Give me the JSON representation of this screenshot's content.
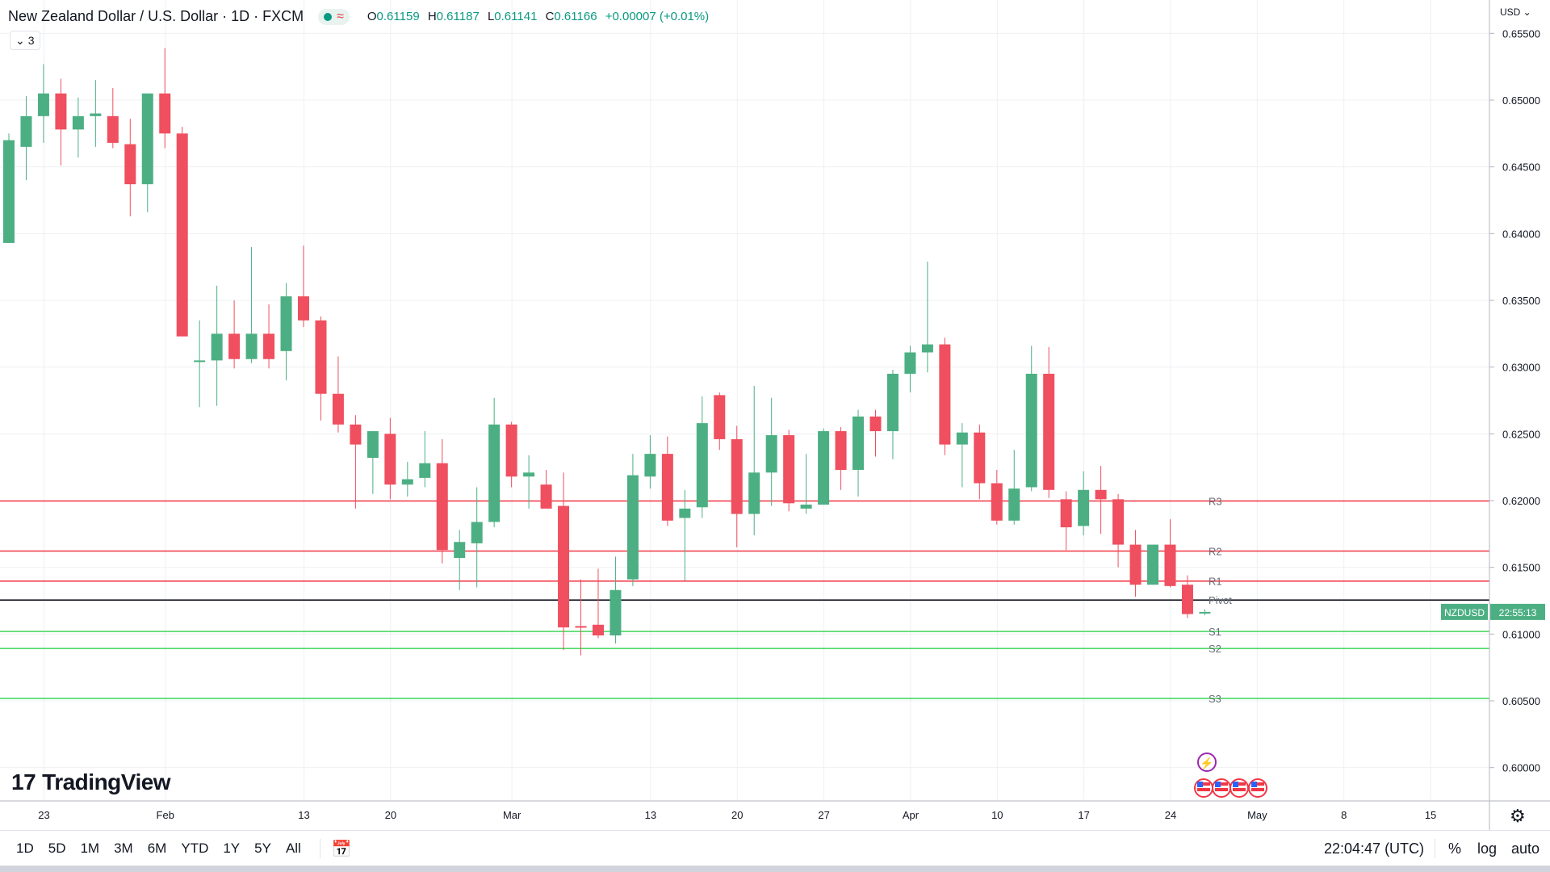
{
  "legend": {
    "symbol": "New Zealand Dollar / U.S. Dollar · 1D · FXCM",
    "ohlc": [
      {
        "key": "O",
        "value": "0.61159"
      },
      {
        "key": "H",
        "value": "0.61187"
      },
      {
        "key": "L",
        "value": "0.61141"
      },
      {
        "key": "C",
        "value": "0.61166"
      }
    ],
    "change": "+0.00007 (+0.01%)",
    "indicator_count": "3"
  },
  "price_axis": {
    "currency": "USD"
  },
  "last_price": {
    "ticker": "NZDUSD",
    "countdown": "22:55:13",
    "value": 0.61166
  },
  "branding": {
    "logo_text": "TradingView"
  },
  "toolbar": {
    "ranges": [
      "1D",
      "5D",
      "1M",
      "3M",
      "6M",
      "YTD",
      "1Y",
      "5Y",
      "All"
    ],
    "clock": "22:04:47 (UTC)",
    "percent_label": "%",
    "log_label": "log",
    "auto_label": "auto"
  },
  "colors": {
    "up": "#4caf83",
    "down": "#ef4f5f",
    "resistance": "#f23645",
    "support": "#4cd964",
    "pivot": "#131722",
    "grid": "#eef0f3"
  },
  "chart_data": {
    "type": "candlestick",
    "title": "New Zealand Dollar / U.S. Dollar · 1D · FXCM",
    "ylim": [
      0.5975,
      0.6575
    ],
    "y_ticks": [
      "0.60000",
      "0.60500",
      "0.61000",
      "0.61500",
      "0.62000",
      "0.62500",
      "0.63000",
      "0.63500",
      "0.64000",
      "0.64500",
      "0.65000",
      "0.65500"
    ],
    "x_ticks": [
      {
        "label": "23",
        "index": 1
      },
      {
        "label": "Feb",
        "index": 8
      },
      {
        "label": "13",
        "index": 16
      },
      {
        "label": "20",
        "index": 21
      },
      {
        "label": "Mar",
        "index": 28
      },
      {
        "label": "13",
        "index": 36
      },
      {
        "label": "20",
        "index": 41
      },
      {
        "label": "27",
        "index": 46
      },
      {
        "label": "Apr",
        "index": 51
      },
      {
        "label": "10",
        "index": 56
      },
      {
        "label": "17",
        "index": 61
      },
      {
        "label": "24",
        "index": 66
      },
      {
        "label": "May",
        "index": 71
      },
      {
        "label": "8",
        "index": 76
      },
      {
        "label": "15",
        "index": 81
      }
    ],
    "candles": [
      {
        "o": 0.6393,
        "h": 0.6475,
        "l": 0.6393,
        "c": 0.647
      },
      {
        "o": 0.6465,
        "h": 0.6503,
        "l": 0.644,
        "c": 0.6488
      },
      {
        "o": 0.6488,
        "h": 0.6527,
        "l": 0.6468,
        "c": 0.6505
      },
      {
        "o": 0.6505,
        "h": 0.6516,
        "l": 0.6451,
        "c": 0.6478
      },
      {
        "o": 0.6478,
        "h": 0.6502,
        "l": 0.6457,
        "c": 0.6488
      },
      {
        "o": 0.6488,
        "h": 0.6515,
        "l": 0.6465,
        "c": 0.649
      },
      {
        "o": 0.6488,
        "h": 0.6509,
        "l": 0.6464,
        "c": 0.6468
      },
      {
        "o": 0.6467,
        "h": 0.6486,
        "l": 0.6413,
        "c": 0.6437
      },
      {
        "o": 0.6437,
        "h": 0.6505,
        "l": 0.6416,
        "c": 0.6505
      },
      {
        "o": 0.6505,
        "h": 0.6539,
        "l": 0.6464,
        "c": 0.6475
      },
      {
        "o": 0.6475,
        "h": 0.648,
        "l": 0.6323,
        "c": 0.6323
      },
      {
        "o": 0.6304,
        "h": 0.6335,
        "l": 0.627,
        "c": 0.6305
      },
      {
        "o": 0.6305,
        "h": 0.6361,
        "l": 0.6271,
        "c": 0.6325
      },
      {
        "o": 0.6325,
        "h": 0.635,
        "l": 0.6299,
        "c": 0.6306
      },
      {
        "o": 0.6306,
        "h": 0.639,
        "l": 0.6303,
        "c": 0.6325
      },
      {
        "o": 0.6325,
        "h": 0.6347,
        "l": 0.6299,
        "c": 0.6306
      },
      {
        "o": 0.6312,
        "h": 0.6363,
        "l": 0.629,
        "c": 0.6353
      },
      {
        "o": 0.6353,
        "h": 0.6391,
        "l": 0.633,
        "c": 0.6335
      },
      {
        "o": 0.6335,
        "h": 0.6338,
        "l": 0.626,
        "c": 0.628
      },
      {
        "o": 0.628,
        "h": 0.6308,
        "l": 0.6251,
        "c": 0.6257
      },
      {
        "o": 0.6257,
        "h": 0.6264,
        "l": 0.6194,
        "c": 0.6242
      },
      {
        "o": 0.6232,
        "h": 0.6252,
        "l": 0.6205,
        "c": 0.6252
      },
      {
        "o": 0.625,
        "h": 0.6262,
        "l": 0.6201,
        "c": 0.6212
      },
      {
        "o": 0.6212,
        "h": 0.6229,
        "l": 0.6203,
        "c": 0.6216
      },
      {
        "o": 0.6217,
        "h": 0.6252,
        "l": 0.621,
        "c": 0.6228
      },
      {
        "o": 0.6228,
        "h": 0.6246,
        "l": 0.6153,
        "c": 0.6163
      },
      {
        "o": 0.6157,
        "h": 0.6178,
        "l": 0.6133,
        "c": 0.6169
      },
      {
        "o": 0.6168,
        "h": 0.621,
        "l": 0.6135,
        "c": 0.6184
      },
      {
        "o": 0.6184,
        "h": 0.6277,
        "l": 0.618,
        "c": 0.6257
      },
      {
        "o": 0.6257,
        "h": 0.6259,
        "l": 0.621,
        "c": 0.6218
      },
      {
        "o": 0.6218,
        "h": 0.6234,
        "l": 0.6194,
        "c": 0.6221
      },
      {
        "o": 0.6212,
        "h": 0.6223,
        "l": 0.6194,
        "c": 0.6194
      },
      {
        "o": 0.6196,
        "h": 0.6221,
        "l": 0.6088,
        "c": 0.6105
      },
      {
        "o": 0.6106,
        "h": 0.6141,
        "l": 0.6084,
        "c": 0.6105
      },
      {
        "o": 0.6107,
        "h": 0.6149,
        "l": 0.6097,
        "c": 0.6099
      },
      {
        "o": 0.6099,
        "h": 0.6158,
        "l": 0.6093,
        "c": 0.6133
      },
      {
        "o": 0.6141,
        "h": 0.6235,
        "l": 0.6136,
        "c": 0.6219
      },
      {
        "o": 0.6218,
        "h": 0.6249,
        "l": 0.6209,
        "c": 0.6235
      },
      {
        "o": 0.6235,
        "h": 0.6248,
        "l": 0.6181,
        "c": 0.6185
      },
      {
        "o": 0.6187,
        "h": 0.6208,
        "l": 0.614,
        "c": 0.6194
      },
      {
        "o": 0.6195,
        "h": 0.6278,
        "l": 0.6187,
        "c": 0.6258
      },
      {
        "o": 0.6279,
        "h": 0.6281,
        "l": 0.6238,
        "c": 0.6246
      },
      {
        "o": 0.6246,
        "h": 0.6256,
        "l": 0.6165,
        "c": 0.619
      },
      {
        "o": 0.619,
        "h": 0.6286,
        "l": 0.6174,
        "c": 0.6221
      },
      {
        "o": 0.6221,
        "h": 0.6277,
        "l": 0.6196,
        "c": 0.6249
      },
      {
        "o": 0.6249,
        "h": 0.6253,
        "l": 0.6192,
        "c": 0.6198
      },
      {
        "o": 0.6194,
        "h": 0.6235,
        "l": 0.619,
        "c": 0.6197
      },
      {
        "o": 0.6197,
        "h": 0.6254,
        "l": 0.6197,
        "c": 0.6252
      },
      {
        "o": 0.6252,
        "h": 0.6255,
        "l": 0.6208,
        "c": 0.6223
      },
      {
        "o": 0.6223,
        "h": 0.6268,
        "l": 0.6203,
        "c": 0.6263
      },
      {
        "o": 0.6263,
        "h": 0.6268,
        "l": 0.6233,
        "c": 0.6252
      },
      {
        "o": 0.6252,
        "h": 0.6298,
        "l": 0.6231,
        "c": 0.6295
      },
      {
        "o": 0.6295,
        "h": 0.6316,
        "l": 0.6281,
        "c": 0.6311
      },
      {
        "o": 0.6311,
        "h": 0.6379,
        "l": 0.6296,
        "c": 0.6317
      },
      {
        "o": 0.6317,
        "h": 0.6322,
        "l": 0.6234,
        "c": 0.6242
      },
      {
        "o": 0.6242,
        "h": 0.6258,
        "l": 0.621,
        "c": 0.6251
      },
      {
        "o": 0.6251,
        "h": 0.6257,
        "l": 0.6201,
        "c": 0.6213
      },
      {
        "o": 0.6213,
        "h": 0.6223,
        "l": 0.6182,
        "c": 0.6185
      },
      {
        "o": 0.6185,
        "h": 0.6238,
        "l": 0.6182,
        "c": 0.6209
      },
      {
        "o": 0.621,
        "h": 0.6316,
        "l": 0.6207,
        "c": 0.6295
      },
      {
        "o": 0.6295,
        "h": 0.6315,
        "l": 0.6202,
        "c": 0.6208
      },
      {
        "o": 0.6201,
        "h": 0.6207,
        "l": 0.6163,
        "c": 0.618
      },
      {
        "o": 0.6181,
        "h": 0.6222,
        "l": 0.6174,
        "c": 0.6208
      },
      {
        "o": 0.6208,
        "h": 0.6226,
        "l": 0.6175,
        "c": 0.6201
      },
      {
        "o": 0.6201,
        "h": 0.6205,
        "l": 0.615,
        "c": 0.6167
      },
      {
        "o": 0.6167,
        "h": 0.6178,
        "l": 0.6128,
        "c": 0.6137
      },
      {
        "o": 0.6137,
        "h": 0.6167,
        "l": 0.6137,
        "c": 0.6167
      },
      {
        "o": 0.6167,
        "h": 0.6186,
        "l": 0.6135,
        "c": 0.6136
      },
      {
        "o": 0.6137,
        "h": 0.6144,
        "l": 0.6112,
        "c": 0.6115
      },
      {
        "o": 0.61159,
        "h": 0.61187,
        "l": 0.61141,
        "c": 0.61166
      }
    ],
    "levels": [
      {
        "label": "R3",
        "value": 0.61997,
        "kind": "resistance"
      },
      {
        "label": "R2",
        "value": 0.61622,
        "kind": "resistance"
      },
      {
        "label": "R1",
        "value": 0.61397,
        "kind": "resistance"
      },
      {
        "label": "Pivot",
        "value": 0.61255,
        "kind": "pivot"
      },
      {
        "label": "S1",
        "value": 0.6102,
        "kind": "support"
      },
      {
        "label": "S2",
        "value": 0.60892,
        "kind": "support"
      },
      {
        "label": "S3",
        "value": 0.60518,
        "kind": "support"
      }
    ]
  }
}
